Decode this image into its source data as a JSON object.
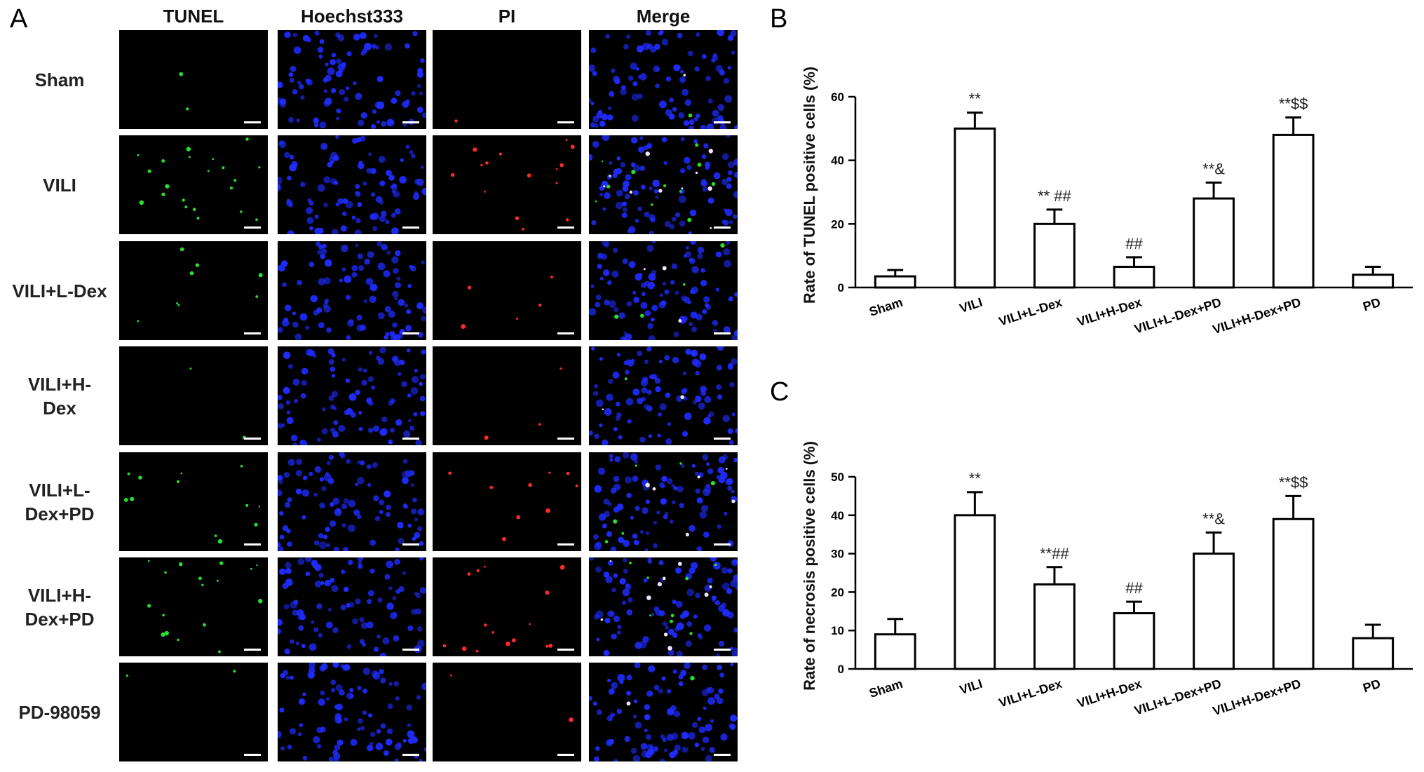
{
  "panel_a": {
    "letter": "A",
    "columns": [
      "TUNEL",
      "Hoechst333",
      "PI",
      "Merge"
    ],
    "rows": [
      "Sham",
      "VILI",
      "VILI+L-Dex",
      "VILI+H-\nDex",
      "VILI+L-\nDex+PD",
      "VILI+H-\nDex+PD",
      "PD-98059"
    ],
    "channel_colors": {
      "tunel": "#27e02c",
      "hoechst": "#1f2cff",
      "pi": "#ff2a2a",
      "merge": "#f0e6ff"
    },
    "signal_levels": {
      "tunel": [
        0.05,
        0.7,
        0.25,
        0.05,
        0.4,
        0.55,
        0.05
      ],
      "pi": [
        0.03,
        0.5,
        0.15,
        0.1,
        0.3,
        0.5,
        0.05
      ]
    }
  },
  "chart_data": [
    {
      "letter": "B",
      "type": "bar",
      "title": "",
      "xlabel": "",
      "ylabel": "Rate of TUNEL positive cells (%)",
      "categories": [
        "Sham",
        "VILI",
        "VILI+L-Dex",
        "VILI+H-Dex",
        "VILI+L-Dex+PD",
        "VILI+H-Dex+PD",
        "PD"
      ],
      "values": [
        3.5,
        50,
        20,
        6.5,
        28,
        48,
        4
      ],
      "errors": [
        2,
        5,
        4.5,
        3,
        5,
        5.5,
        2.5
      ],
      "annotations": [
        "",
        "**",
        "** ##",
        "##",
        "**&",
        "**$$",
        ""
      ],
      "ylim": [
        0,
        60
      ],
      "yticks": [
        0,
        20,
        40,
        60
      ],
      "bar_fill": "#ffffff",
      "bar_stroke": "#000000"
    },
    {
      "letter": "C",
      "type": "bar",
      "title": "",
      "xlabel": "",
      "ylabel": "Rate of necrosis positive cells (%)",
      "categories": [
        "Sham",
        "VILI",
        "VILI+L-Dex",
        "VILI+H-Dex",
        "VILI+L-Dex+PD",
        "VILI+H-Dex+PD",
        "PD"
      ],
      "values": [
        9,
        40,
        22,
        14.5,
        30,
        39,
        8
      ],
      "errors": [
        4,
        6,
        4.5,
        3,
        5.5,
        6,
        3.5
      ],
      "annotations": [
        "",
        "**",
        "**##",
        "##",
        "**&",
        "**$$",
        ""
      ],
      "ylim": [
        0,
        50
      ],
      "yticks": [
        0,
        10,
        20,
        30,
        40,
        50
      ],
      "bar_fill": "#ffffff",
      "bar_stroke": "#000000"
    }
  ]
}
